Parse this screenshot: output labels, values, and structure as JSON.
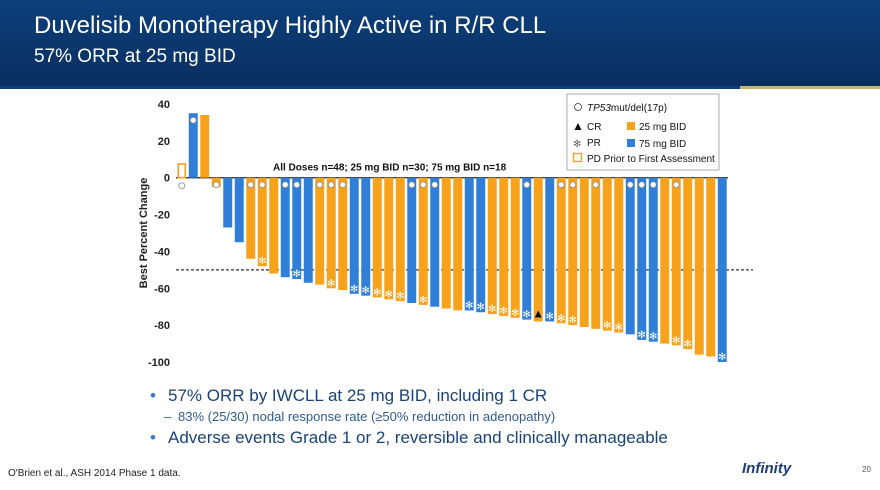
{
  "slide": {
    "title": "Duvelisib Monotherapy Highly Active in R/R CLL",
    "subtitle": "57% ORR at 25 mg BID",
    "bullets": [
      {
        "text": "57% ORR by IWCLL at 25 mg BID, including 1 CR",
        "level": 1
      },
      {
        "text": "83% (25/30) nodal response rate (≥50% reduction in adenopathy)",
        "level": 2
      },
      {
        "text": "Adverse events Grade 1 or 2, reversible and clinically manageable",
        "level": 1
      }
    ],
    "footer": "O'Brien et al., ASH 2014 Phase 1 data.",
    "page_number": "20",
    "logo_text": "Infinity"
  },
  "colors": {
    "header_bg": "#0d3f7a",
    "dose25": "#f7a21b",
    "dose75": "#2f7fd8",
    "threshold": "#333333"
  },
  "chart_data": {
    "type": "bar",
    "ylabel": "Best Percent Change",
    "annotation": "All Doses n=48; 25 mg BID n=30; 75 mg BID n=18",
    "ylim": [
      -100,
      40
    ],
    "yticks": [
      40,
      20,
      0,
      -20,
      -40,
      -60,
      -80,
      -100
    ],
    "threshold": -50,
    "legend": {
      "position": "top-right",
      "tp53_prefix": "TP53",
      "tp53_suffix": "mut/del(17p)",
      "cr": "CR",
      "pr": "PR",
      "dose25": "25 mg BID",
      "dose75": "75 mg BID",
      "pd": "PD Prior to First Assessment"
    },
    "bars": [
      {
        "v": 8,
        "d": "pd",
        "tp53": true
      },
      {
        "v": 35,
        "d": "75",
        "tp53": true
      },
      {
        "v": 34,
        "d": "25"
      },
      {
        "v": -5,
        "d": "25",
        "tp53": true
      },
      {
        "v": -27,
        "d": "75"
      },
      {
        "v": -35,
        "d": "75"
      },
      {
        "v": -44,
        "d": "25",
        "tp53": true
      },
      {
        "v": -48,
        "d": "25",
        "tp53": true,
        "pr": true
      },
      {
        "v": -52,
        "d": "25"
      },
      {
        "v": -54,
        "d": "75",
        "tp53": true
      },
      {
        "v": -55,
        "d": "75",
        "tp53": true,
        "pr": true
      },
      {
        "v": -57,
        "d": "75"
      },
      {
        "v": -58,
        "d": "25",
        "tp53": true
      },
      {
        "v": -60,
        "d": "25",
        "tp53": true,
        "pr": true
      },
      {
        "v": -61,
        "d": "25",
        "tp53": true
      },
      {
        "v": -63,
        "d": "75",
        "pr": true
      },
      {
        "v": -64,
        "d": "75",
        "pr": true
      },
      {
        "v": -65,
        "d": "25",
        "pr": true
      },
      {
        "v": -66,
        "d": "25",
        "pr": true
      },
      {
        "v": -67,
        "d": "25",
        "pr": true
      },
      {
        "v": -68,
        "d": "75",
        "tp53": true
      },
      {
        "v": -69,
        "d": "25",
        "tp53": true,
        "pr": true
      },
      {
        "v": -70,
        "d": "75",
        "tp53": true
      },
      {
        "v": -71,
        "d": "25"
      },
      {
        "v": -72,
        "d": "25"
      },
      {
        "v": -72,
        "d": "75",
        "pr": true
      },
      {
        "v": -73,
        "d": "75",
        "pr": true
      },
      {
        "v": -74,
        "d": "25",
        "pr": true
      },
      {
        "v": -75,
        "d": "25",
        "pr": true
      },
      {
        "v": -76,
        "d": "25",
        "pr": true
      },
      {
        "v": -77,
        "d": "75",
        "tp53": true,
        "pr": true
      },
      {
        "v": -78,
        "d": "25",
        "cr": true
      },
      {
        "v": -78,
        "d": "75",
        "pr": true
      },
      {
        "v": -79,
        "d": "25",
        "tp53": true,
        "pr": true
      },
      {
        "v": -80,
        "d": "25",
        "tp53": true,
        "pr": true
      },
      {
        "v": -81,
        "d": "25"
      },
      {
        "v": -82,
        "d": "25",
        "tp53": true
      },
      {
        "v": -83,
        "d": "25",
        "pr": true
      },
      {
        "v": -84,
        "d": "25",
        "pr": true
      },
      {
        "v": -85,
        "d": "75",
        "tp53": true
      },
      {
        "v": -88,
        "d": "75",
        "tp53": true,
        "pr": true
      },
      {
        "v": -89,
        "d": "75",
        "tp53": true,
        "pr": true
      },
      {
        "v": -90,
        "d": "25"
      },
      {
        "v": -91,
        "d": "25",
        "tp53": true,
        "pr": true
      },
      {
        "v": -93,
        "d": "25",
        "pr": true
      },
      {
        "v": -96,
        "d": "25"
      },
      {
        "v": -97,
        "d": "25"
      },
      {
        "v": -100,
        "d": "75",
        "pr": true
      }
    ]
  }
}
